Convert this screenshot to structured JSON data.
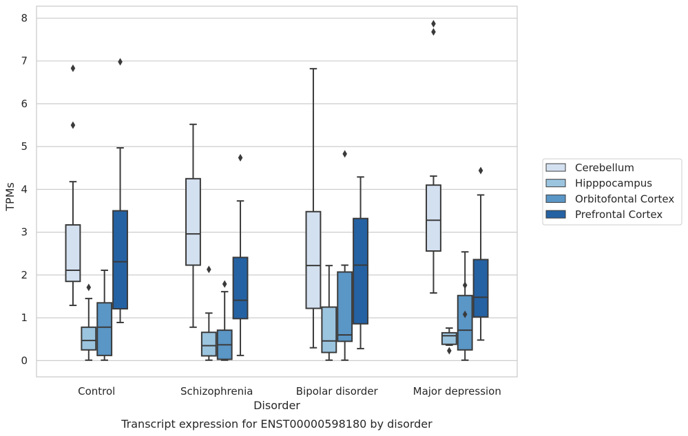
{
  "chart_data": {
    "type": "box",
    "caption": "Transcript expression for ENST00000598180 by disorder",
    "xlabel": "Disorder",
    "ylabel": "TPMs",
    "ylim": [
      -0.38,
      8.28
    ],
    "yticks": [
      0,
      1,
      2,
      3,
      4,
      5,
      6,
      7,
      8
    ],
    "grid": "horizontal",
    "legend_position": "right",
    "categories": [
      "Control",
      "Schizophrenia",
      "Bipolar disorder",
      "Major depression"
    ],
    "series": [
      {
        "name": "Cerebellum",
        "color": "#d3e0f0",
        "boxes": [
          {
            "whisker_low": 1.29,
            "q1": 1.85,
            "median": 2.11,
            "q3": 3.17,
            "whisker_high": 4.18,
            "outliers": [
              5.5,
              6.83
            ]
          },
          {
            "whisker_low": 0.78,
            "q1": 2.23,
            "median": 2.96,
            "q3": 4.25,
            "whisker_high": 5.52,
            "outliers": []
          },
          {
            "whisker_low": 0.3,
            "q1": 1.22,
            "median": 2.22,
            "q3": 3.48,
            "whisker_high": 6.82,
            "outliers": []
          },
          {
            "whisker_low": 1.58,
            "q1": 2.56,
            "median": 3.28,
            "q3": 4.1,
            "whisker_high": 4.31,
            "outliers": [
              7.68,
              7.87
            ]
          }
        ]
      },
      {
        "name": "Hipppocampus",
        "color": "#9bc4df",
        "boxes": [
          {
            "whisker_low": 0.01,
            "q1": 0.25,
            "median": 0.47,
            "q3": 0.78,
            "whisker_high": 1.45,
            "outliers": [
              1.71
            ]
          },
          {
            "whisker_low": 0.01,
            "q1": 0.11,
            "median": 0.35,
            "q3": 0.66,
            "whisker_high": 1.11,
            "outliers": [
              2.13
            ]
          },
          {
            "whisker_low": 0.01,
            "q1": 0.19,
            "median": 0.46,
            "q3": 1.25,
            "whisker_high": 2.22,
            "outliers": []
          },
          {
            "whisker_low": 0.36,
            "q1": 0.38,
            "median": 0.58,
            "q3": 0.65,
            "whisker_high": 0.76,
            "outliers": [
              0.23
            ]
          }
        ]
      },
      {
        "name": "Orbitofontal Cortex",
        "color": "#5a96c6",
        "boxes": [
          {
            "whisker_low": 0.01,
            "q1": 0.12,
            "median": 0.78,
            "q3": 1.35,
            "whisker_high": 2.11,
            "outliers": []
          },
          {
            "whisker_low": 0.01,
            "q1": 0.03,
            "median": 0.37,
            "q3": 0.71,
            "whisker_high": 1.61,
            "outliers": [
              1.79
            ]
          },
          {
            "whisker_low": 0.01,
            "q1": 0.45,
            "median": 0.6,
            "q3": 2.07,
            "whisker_high": 2.23,
            "outliers": [
              4.83
            ]
          },
          {
            "whisker_low": 0.01,
            "q1": 0.25,
            "median": 0.71,
            "q3": 1.52,
            "whisker_high": 2.54,
            "outliers": [
              1.08,
              1.76
            ]
          }
        ]
      },
      {
        "name": "Prefrontal Cortex",
        "color": "#2562a3",
        "boxes": [
          {
            "whisker_low": 0.89,
            "q1": 1.21,
            "median": 2.31,
            "q3": 3.5,
            "whisker_high": 4.97,
            "outliers": [
              6.98
            ]
          },
          {
            "whisker_low": 0.12,
            "q1": 0.98,
            "median": 1.41,
            "q3": 2.41,
            "whisker_high": 3.73,
            "outliers": [
              4.74
            ]
          },
          {
            "whisker_low": 0.28,
            "q1": 0.86,
            "median": 2.23,
            "q3": 3.32,
            "whisker_high": 4.29,
            "outliers": []
          },
          {
            "whisker_low": 0.48,
            "q1": 1.02,
            "median": 1.48,
            "q3": 2.36,
            "whisker_high": 3.87,
            "outliers": [
              4.44
            ]
          }
        ]
      }
    ]
  }
}
